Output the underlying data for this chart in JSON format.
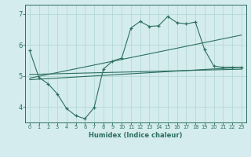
{
  "title": "",
  "xlabel": "Humidex (Indice chaleur)",
  "background_color": "#d4ecee",
  "line_color": "#2d7060",
  "grid_color": "#b0d4d4",
  "xlim": [
    -0.5,
    23.5
  ],
  "ylim": [
    3.5,
    7.3
  ],
  "yticks": [
    4,
    5,
    6,
    7
  ],
  "xticks": [
    0,
    1,
    2,
    3,
    4,
    5,
    6,
    7,
    8,
    9,
    10,
    11,
    12,
    13,
    14,
    15,
    16,
    17,
    18,
    19,
    20,
    21,
    22,
    23
  ],
  "series_x": [
    0,
    1,
    2,
    3,
    4,
    5,
    6,
    7,
    8,
    9,
    10,
    11,
    12,
    13,
    14,
    15,
    16,
    17,
    18,
    19,
    20,
    21,
    22,
    23
  ],
  "series_y": [
    5.82,
    4.95,
    4.75,
    4.42,
    3.95,
    3.72,
    3.62,
    3.98,
    5.22,
    5.48,
    5.58,
    6.55,
    6.76,
    6.6,
    6.62,
    6.92,
    6.72,
    6.68,
    6.74,
    5.85,
    5.32,
    5.28,
    5.28,
    5.28
  ],
  "line1_x": [
    0,
    23
  ],
  "line1_y": [
    4.88,
    5.28
  ],
  "line2_x": [
    0,
    23
  ],
  "line2_y": [
    4.93,
    6.32
  ],
  "line3_x": [
    0,
    23
  ],
  "line3_y": [
    5.05,
    5.22
  ]
}
